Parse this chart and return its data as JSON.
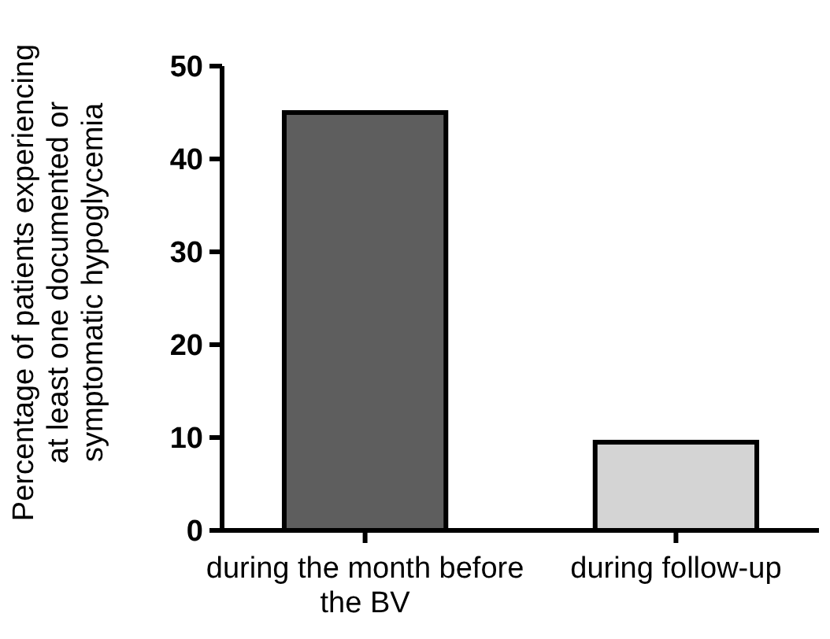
{
  "chart_data": {
    "type": "bar",
    "ylabel": "Percentage of patients experiencing at least one documented or symptomatic hypoglycemia",
    "categories": [
      "during the month before the BV",
      "during follow-up"
    ],
    "values": [
      45,
      9.5
    ],
    "colors": [
      "#5e5e5e",
      "#d4d4d4"
    ],
    "ylim": [
      0,
      50
    ],
    "yticks": [
      0,
      10,
      20,
      30,
      40,
      50
    ],
    "grid": false
  }
}
